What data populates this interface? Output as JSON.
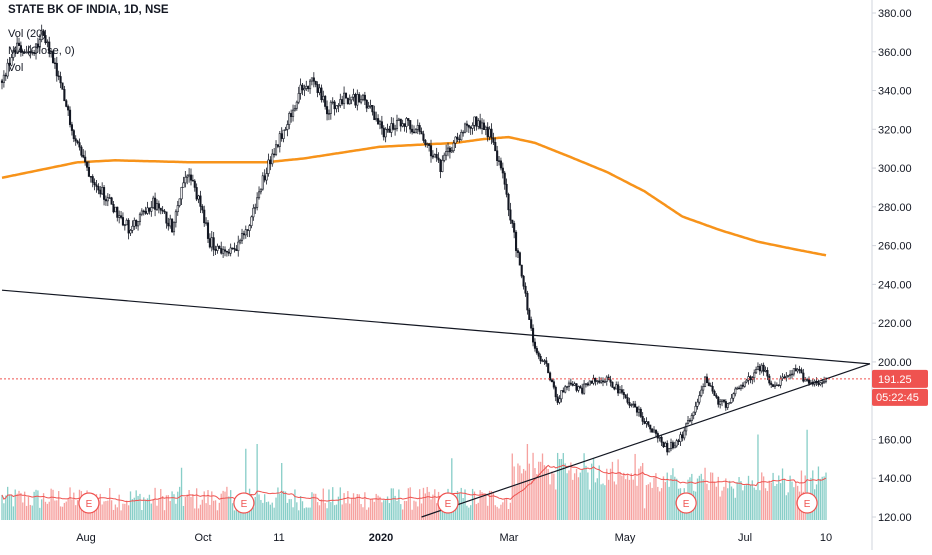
{
  "header": {
    "title": "STATE BK OF INDIA, 1D, NSE",
    "line2": "Vol (20)",
    "line3": "MA (Close, 0)",
    "line4": "Vol"
  },
  "price_axis": {
    "ticks": [
      "380.00",
      "360.00",
      "340.00",
      "320.00",
      "300.00",
      "280.00",
      "260.00",
      "240.00",
      "220.00",
      "200.00",
      "180.00",
      "160.00",
      "140.00",
      "120.00"
    ]
  },
  "time_axis": {
    "labels": [
      "Aug",
      "Oct",
      "11",
      "2020",
      "Mar",
      "May",
      "Jul",
      "10"
    ]
  },
  "last_price_label": "191.25",
  "countdown_label": "05:22:45",
  "earnings_marker_text": "E",
  "colors": {
    "up": "#26a69a",
    "down": "#ef5350",
    "candle_body": "#131722",
    "ma200": "#f7931a",
    "vol_ma": "#ef5350",
    "trendline": "#131722",
    "last_price": "#ef5350",
    "axis_text": "#131722",
    "grid_border": "#d1d4dc"
  },
  "chart_data": {
    "type": "candlestick",
    "title": "STATE BK OF INDIA, 1D, NSE",
    "ylim": [
      120,
      385
    ],
    "y_ticks": [
      380,
      360,
      340,
      320,
      300,
      280,
      260,
      240,
      220,
      200,
      180,
      160,
      140,
      120
    ],
    "x_labels": [
      "Aug",
      "Oct",
      "11",
      "2020",
      "Mar",
      "May",
      "Jul",
      "10"
    ],
    "last_price": 191.25,
    "price_anchors": [
      {
        "i": 0,
        "v": 345
      },
      {
        "i": 8,
        "v": 362
      },
      {
        "i": 16,
        "v": 358
      },
      {
        "i": 22,
        "v": 370
      },
      {
        "i": 30,
        "v": 345
      },
      {
        "i": 38,
        "v": 318
      },
      {
        "i": 45,
        "v": 300
      },
      {
        "i": 55,
        "v": 285
      },
      {
        "i": 68,
        "v": 268
      },
      {
        "i": 80,
        "v": 282
      },
      {
        "i": 90,
        "v": 270
      },
      {
        "i": 97,
        "v": 298
      },
      {
        "i": 102,
        "v": 290
      },
      {
        "i": 110,
        "v": 262
      },
      {
        "i": 120,
        "v": 255
      },
      {
        "i": 130,
        "v": 268
      },
      {
        "i": 140,
        "v": 300
      },
      {
        "i": 148,
        "v": 318
      },
      {
        "i": 158,
        "v": 340
      },
      {
        "i": 165,
        "v": 345
      },
      {
        "i": 172,
        "v": 330
      },
      {
        "i": 180,
        "v": 336
      },
      {
        "i": 192,
        "v": 335
      },
      {
        "i": 202,
        "v": 318
      },
      {
        "i": 212,
        "v": 325
      },
      {
        "i": 222,
        "v": 318
      },
      {
        "i": 232,
        "v": 300
      },
      {
        "i": 240,
        "v": 315
      },
      {
        "i": 250,
        "v": 325
      },
      {
        "i": 258,
        "v": 318
      },
      {
        "i": 264,
        "v": 300
      },
      {
        "i": 270,
        "v": 270
      },
      {
        "i": 276,
        "v": 240
      },
      {
        "i": 282,
        "v": 205
      },
      {
        "i": 288,
        "v": 198
      },
      {
        "i": 294,
        "v": 180
      },
      {
        "i": 300,
        "v": 190
      },
      {
        "i": 306,
        "v": 185
      },
      {
        "i": 312,
        "v": 190
      },
      {
        "i": 320,
        "v": 192
      },
      {
        "i": 328,
        "v": 183
      },
      {
        "i": 336,
        "v": 175
      },
      {
        "i": 344,
        "v": 165
      },
      {
        "i": 352,
        "v": 155
      },
      {
        "i": 360,
        "v": 162
      },
      {
        "i": 366,
        "v": 175
      },
      {
        "i": 372,
        "v": 192
      },
      {
        "i": 378,
        "v": 180
      },
      {
        "i": 384,
        "v": 178
      },
      {
        "i": 390,
        "v": 188
      },
      {
        "i": 396,
        "v": 192
      },
      {
        "i": 402,
        "v": 198
      },
      {
        "i": 408,
        "v": 186
      },
      {
        "i": 414,
        "v": 192
      },
      {
        "i": 420,
        "v": 196
      },
      {
        "i": 426,
        "v": 190
      },
      {
        "i": 432,
        "v": 190
      },
      {
        "i": 436,
        "v": 191.25
      }
    ],
    "ma200": [
      {
        "i": 0,
        "v": 295
      },
      {
        "i": 20,
        "v": 299
      },
      {
        "i": 40,
        "v": 303
      },
      {
        "i": 60,
        "v": 304
      },
      {
        "i": 100,
        "v": 303
      },
      {
        "i": 140,
        "v": 303
      },
      {
        "i": 160,
        "v": 305
      },
      {
        "i": 180,
        "v": 308
      },
      {
        "i": 200,
        "v": 311
      },
      {
        "i": 220,
        "v": 312
      },
      {
        "i": 240,
        "v": 313
      },
      {
        "i": 255,
        "v": 315
      },
      {
        "i": 268,
        "v": 316
      },
      {
        "i": 282,
        "v": 313
      },
      {
        "i": 300,
        "v": 306
      },
      {
        "i": 320,
        "v": 298
      },
      {
        "i": 340,
        "v": 288
      },
      {
        "i": 360,
        "v": 275
      },
      {
        "i": 380,
        "v": 268
      },
      {
        "i": 400,
        "v": 262
      },
      {
        "i": 420,
        "v": 258
      },
      {
        "i": 436,
        "v": 255
      }
    ],
    "volume_spikes": [
      {
        "i": 95,
        "h": 0.55
      },
      {
        "i": 129,
        "h": 0.75
      },
      {
        "i": 135,
        "h": 0.8
      },
      {
        "i": 148,
        "h": 0.6
      },
      {
        "i": 238,
        "h": 0.65
      },
      {
        "i": 270,
        "h": 0.7
      },
      {
        "i": 278,
        "h": 0.8
      },
      {
        "i": 286,
        "h": 0.7
      },
      {
        "i": 305,
        "h": 0.45
      },
      {
        "i": 372,
        "h": 0.55
      },
      {
        "i": 400,
        "h": 0.9
      },
      {
        "i": 426,
        "h": 0.95
      }
    ],
    "earnings_at": [
      46,
      128,
      236,
      362,
      426
    ],
    "trendlines": [
      {
        "from": {
          "i": 0,
          "v": 237
        },
        "to": {
          "i": 460,
          "v": 199
        }
      },
      {
        "from": {
          "i": 222,
          "v": 120
        },
        "to": {
          "i": 460,
          "v": 199
        }
      }
    ],
    "num_bars": 437
  }
}
